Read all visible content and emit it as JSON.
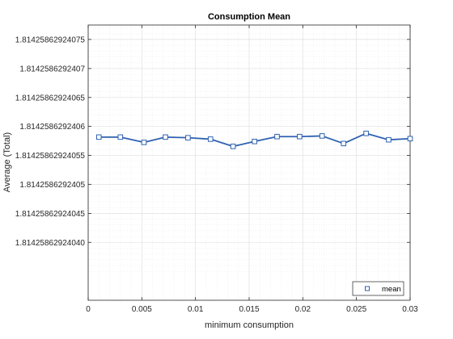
{
  "chart_data": {
    "type": "line",
    "title": "Consumption Mean",
    "xlabel": "minimum consumption",
    "ylabel": "Average (Total)",
    "xlim": [
      0,
      0.03
    ],
    "ylim": [
      1.8142586292403,
      1.814258629240775
    ],
    "x_ticks": [
      0,
      0.005,
      0.01,
      0.015,
      0.02,
      0.025,
      0.03
    ],
    "x_tick_labels": [
      "0",
      "0.005",
      "0.01",
      "0.015",
      "0.02",
      "0.025",
      "0.03"
    ],
    "y_ticks": [
      1.8142586292404,
      1.81425862924045,
      1.8142586292405,
      1.81425862924055,
      1.8142586292406,
      1.81425862924065,
      1.8142586292407,
      1.81425862924075
    ],
    "y_tick_labels": [
      "1.81425862924040",
      "1.81425862924045",
      "1.8142586292405",
      "1.81425862924055",
      "1.8142586292406",
      "1.81425862924065",
      "1.8142586292407",
      "1.81425862924075"
    ],
    "grid": true,
    "minor_grid": true,
    "legend_position": "bottom-right",
    "line_color": "#2f62b0",
    "series": [
      {
        "name": "mean",
        "x": [
          0.001,
          0.003,
          0.0052,
          0.0072,
          0.0093,
          0.0114,
          0.0135,
          0.0155,
          0.0176,
          0.0197,
          0.0218,
          0.0238,
          0.0259,
          0.028,
          0.03
        ],
        "y": [
          1.8142586292405816,
          1.8142586292405816,
          1.8142586292405725,
          1.8142586292405816,
          1.8142586292405805,
          1.814258629240578,
          1.8142586292405656,
          1.814258629240574,
          1.8142586292405825,
          1.8142586292405825,
          1.8142586292405836,
          1.8142586292405705,
          1.814258629240588,
          1.814258629240577,
          1.814258629240579
        ]
      }
    ]
  }
}
